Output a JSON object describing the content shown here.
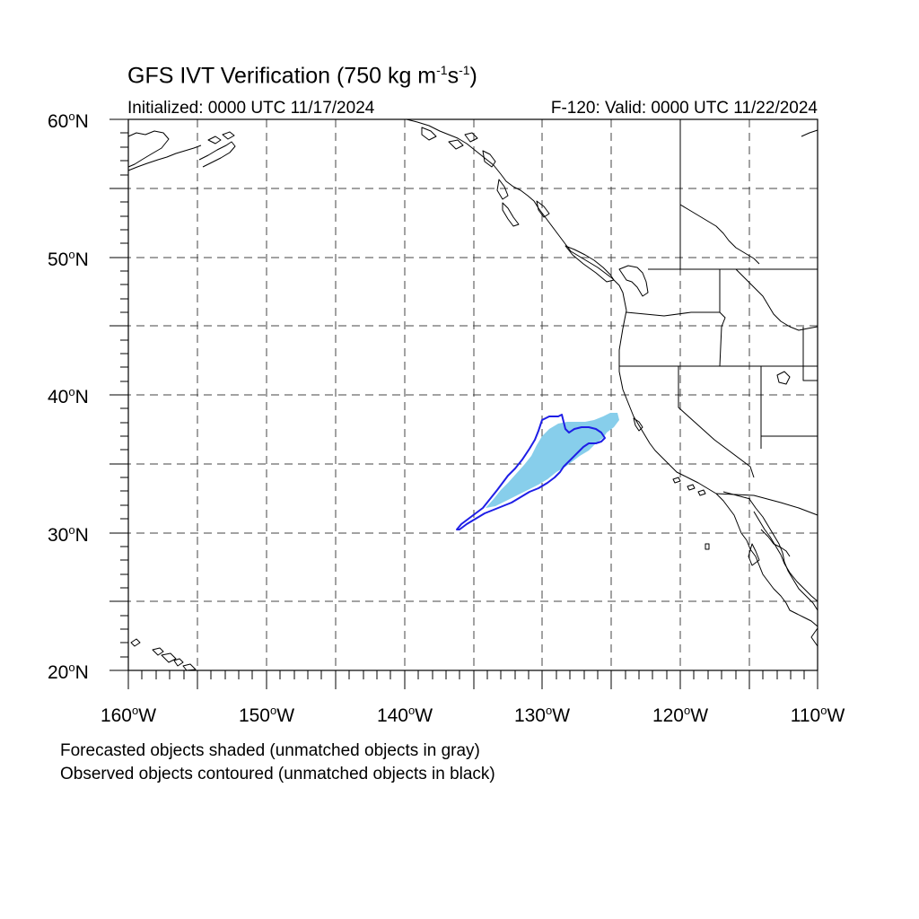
{
  "title": {
    "main": "GFS IVT Verification (750 kg m",
    "exp1": "-1",
    "mid": "s",
    "exp2": "-1",
    "end": ")"
  },
  "initialized": "Initialized: 0000 UTC 11/17/2024",
  "valid": "F-120: Valid: 0000 UTC 11/22/2024",
  "lat_labels": [
    "60",
    "50",
    "40",
    "30",
    "20"
  ],
  "lat_suffix": "N",
  "lon_labels": [
    "160",
    "150",
    "140",
    "130",
    "120",
    "110"
  ],
  "lon_suffix": "W",
  "degree_symbol": "o",
  "caption": {
    "line1": "Forecasted objects shaded (unmatched objects in gray)",
    "line2": "Observed objects contoured (unmatched objects in black)"
  },
  "map": {
    "lon_range": [
      -160,
      -110
    ],
    "lat_range": [
      20,
      60
    ],
    "grid_lon_step": 5,
    "grid_lat_step": 5,
    "grid_style": "dashed",
    "forecast_fill_color": "#87ceeb",
    "observed_contour_color": "#1e1ee6",
    "coastline_color": "#000000"
  }
}
